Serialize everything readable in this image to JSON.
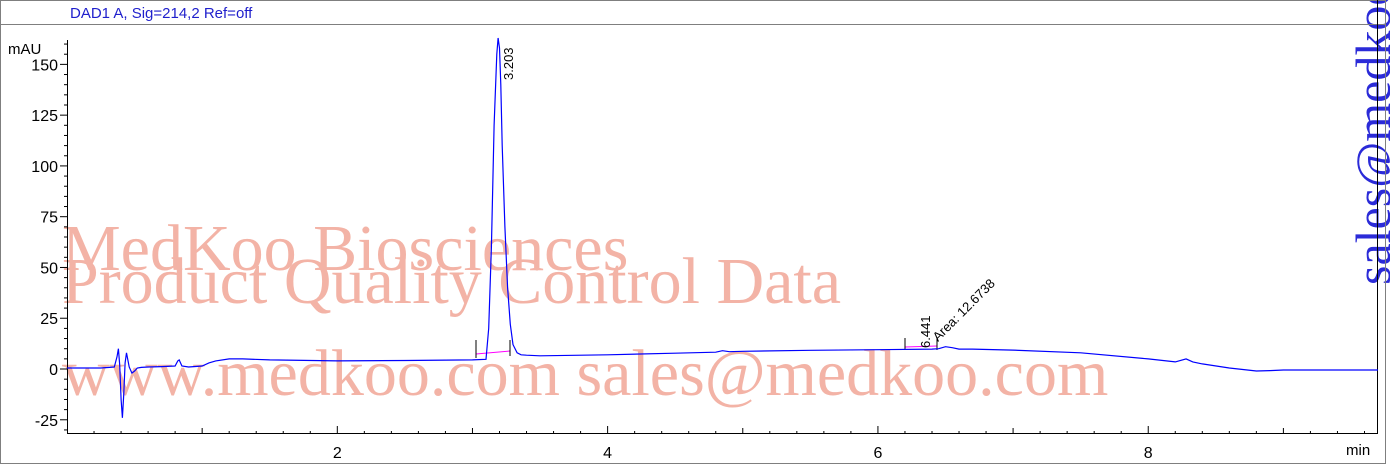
{
  "chart_data": {
    "type": "line",
    "title": "DAD1 A, Sig=214,2 Ref=off",
    "ylabel": "mAU",
    "xlabel": "min",
    "xlim": [
      0,
      9.7
    ],
    "ylim": [
      -32,
      162
    ],
    "xticks": [
      2,
      4,
      6,
      8
    ],
    "yticks": [
      -25,
      0,
      25,
      50,
      75,
      100,
      125,
      150
    ],
    "grid": false,
    "series": [
      {
        "color": "#0000ff",
        "x": [
          0.0,
          0.25,
          0.35,
          0.37,
          0.38,
          0.39,
          0.4,
          0.41,
          0.42,
          0.43,
          0.44,
          0.46,
          0.48,
          0.5,
          0.52,
          0.55,
          0.6,
          0.7,
          0.8,
          0.82,
          0.83,
          0.85,
          0.9,
          1.0,
          1.05,
          1.1,
          1.2,
          1.3,
          1.5,
          2.0,
          2.5,
          3.0,
          3.1,
          3.12,
          3.14,
          3.16,
          3.18,
          3.19,
          3.2,
          3.21,
          3.22,
          3.24,
          3.26,
          3.28,
          3.3,
          3.33,
          3.36,
          3.4,
          3.5,
          4.0,
          4.5,
          4.8,
          4.85,
          4.9,
          5.0,
          5.5,
          6.0,
          6.4,
          6.45,
          6.5,
          6.55,
          6.6,
          6.7,
          7.0,
          7.5,
          8.0,
          8.2,
          8.28,
          8.33,
          8.4,
          8.6,
          8.8,
          8.9,
          9.0,
          9.3,
          9.7
        ],
        "y": [
          0.5,
          0.5,
          1.0,
          6.0,
          10.0,
          2.0,
          -15.0,
          -24.0,
          -12.0,
          3.0,
          8.0,
          1.0,
          -2.0,
          -1.0,
          0.5,
          0.8,
          1.0,
          1.2,
          1.5,
          4.0,
          4.5,
          1.5,
          1.0,
          1.5,
          3.0,
          4.0,
          5.0,
          5.0,
          4.5,
          4.0,
          4.2,
          4.5,
          4.8,
          20.0,
          60.0,
          120.0,
          155.0,
          163.0,
          158.0,
          140.0,
          110.0,
          70.0,
          40.0,
          22.0,
          12.0,
          8.0,
          7.0,
          6.8,
          6.5,
          7.0,
          7.8,
          8.3,
          9.0,
          8.5,
          8.7,
          9.2,
          9.5,
          9.8,
          10.0,
          11.0,
          10.5,
          9.8,
          9.8,
          9.3,
          8.0,
          5.0,
          3.5,
          5.0,
          3.5,
          2.5,
          0.5,
          -1.0,
          -0.8,
          -0.5,
          -0.5,
          -0.5
        ]
      }
    ],
    "peaks": [
      {
        "label": "3.203"
      },
      {
        "label": "6.441"
      },
      {
        "label": "Area: 12.6738"
      }
    ]
  },
  "watermark": {
    "line1": "MedKoo Biosciences",
    "line2": "Product Quality Control Data",
    "line3": "www.medkoo.com     sales@medkoo.com",
    "side": "sales@medkoo.com"
  }
}
